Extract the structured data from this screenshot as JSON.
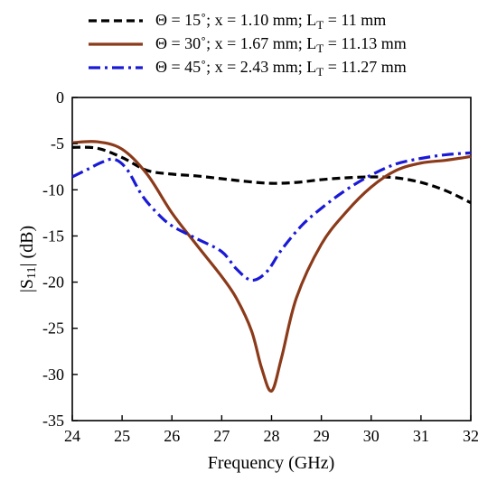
{
  "chart_data": {
    "type": "line",
    "title": "",
    "xlabel": "Frequency (GHz)",
    "ylabel_parts": [
      "|S",
      "11",
      "| (dB)"
    ],
    "xlim": [
      24,
      32
    ],
    "ylim": [
      -35,
      0
    ],
    "xticks": [
      24,
      25,
      26,
      27,
      28,
      29,
      30,
      31,
      32
    ],
    "yticks": [
      0,
      -5,
      -10,
      -15,
      -20,
      -25,
      -30,
      -35
    ],
    "grid": false,
    "legend_position": "top",
    "series": [
      {
        "name_parts": [
          "Θ = 15˚; x = 1.10 mm; L",
          "T",
          " = 11 mm"
        ],
        "color": "#000000",
        "dash": "dashed",
        "x": [
          24.0,
          24.5,
          25.0,
          25.5,
          26.0,
          26.5,
          27.0,
          27.5,
          28.0,
          28.5,
          29.0,
          29.5,
          30.0,
          30.5,
          31.0,
          31.5,
          32.0
        ],
        "y": [
          -5.4,
          -5.5,
          -6.5,
          -7.9,
          -8.3,
          -8.5,
          -8.8,
          -9.1,
          -9.3,
          -9.2,
          -8.9,
          -8.7,
          -8.6,
          -8.7,
          -9.2,
          -10.1,
          -11.4
        ]
      },
      {
        "name_parts": [
          "Θ = 30˚; x = 1.67 mm; L",
          "T",
          " = 11.13 mm"
        ],
        "color": "#8b3a1a",
        "dash": "solid",
        "x": [
          24.0,
          24.5,
          25.0,
          25.5,
          26.0,
          26.5,
          27.0,
          27.3,
          27.6,
          27.8,
          28.0,
          28.2,
          28.5,
          29.0,
          29.5,
          30.0,
          30.5,
          31.0,
          31.5,
          32.0
        ],
        "y": [
          -4.9,
          -4.8,
          -5.6,
          -8.3,
          -12.5,
          -16.0,
          -19.4,
          -21.8,
          -25.3,
          -29.3,
          -31.8,
          -28.2,
          -21.7,
          -15.9,
          -12.4,
          -9.7,
          -7.9,
          -7.1,
          -6.8,
          -6.4
        ]
      },
      {
        "name_parts": [
          "Θ = 45˚; x = 2.43 mm; L",
          "T",
          " = 11.27 mm"
        ],
        "color": "#1a1ad6",
        "dash": "dashdot",
        "x": [
          24.0,
          24.3,
          24.6,
          24.85,
          25.1,
          25.4,
          25.7,
          26.0,
          26.5,
          27.0,
          27.3,
          27.6,
          27.9,
          28.2,
          28.6,
          29.0,
          29.5,
          30.0,
          30.5,
          31.0,
          31.5,
          32.0
        ],
        "y": [
          -8.6,
          -7.8,
          -7.0,
          -6.7,
          -7.8,
          -10.6,
          -12.5,
          -13.9,
          -15.3,
          -16.7,
          -18.6,
          -19.8,
          -18.9,
          -16.5,
          -13.9,
          -12.0,
          -10.0,
          -8.4,
          -7.2,
          -6.6,
          -6.2,
          -6.0
        ]
      }
    ]
  }
}
